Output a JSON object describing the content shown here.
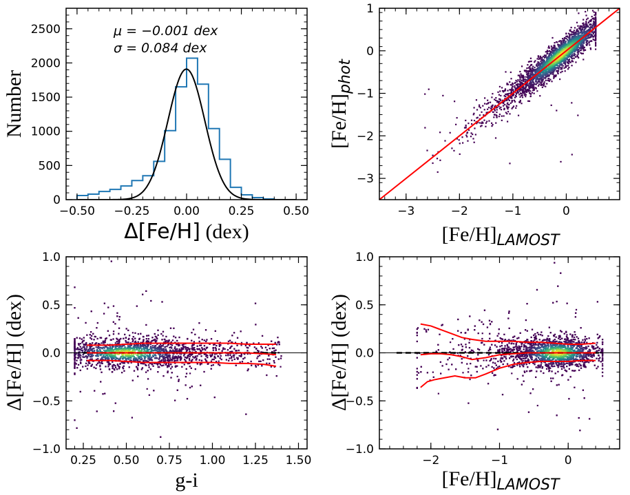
{
  "chart_data": [
    {
      "id": "histogram",
      "type": "bar",
      "xlabel_prefix": "Δ[Fe/H]",
      "xlabel_suffix": " (dex)",
      "ylabel": "Number",
      "xlim": [
        -0.55,
        0.55
      ],
      "ylim": [
        0,
        2800
      ],
      "xticks": [
        -0.5,
        -0.25,
        0.0,
        0.25,
        0.5
      ],
      "xtick_labels": [
        "−0.50",
        "−0.25",
        "0.00",
        "0.25",
        "0.50"
      ],
      "yticks": [
        0,
        500,
        1000,
        1500,
        2000,
        2500
      ],
      "ytick_labels": [
        "0",
        "500",
        "1000",
        "1500",
        "2000",
        "2500"
      ],
      "bin_edges": [
        -0.5,
        -0.45,
        -0.4,
        -0.35,
        -0.3,
        -0.25,
        -0.2,
        -0.15,
        -0.1,
        -0.05,
        0.0,
        0.05,
        0.1,
        0.15,
        0.2,
        0.25,
        0.3,
        0.35,
        0.4
      ],
      "counts": [
        60,
        80,
        120,
        150,
        200,
        280,
        350,
        560,
        1010,
        1650,
        2070,
        1690,
        1040,
        590,
        180,
        70,
        30,
        10
      ],
      "gaussian_fit": {
        "mu": -0.001,
        "sigma": 0.084,
        "amplitude": 1910
      },
      "annotations": [
        "μ = −0.001 dex",
        "σ = 0.084 dex"
      ],
      "colors": {
        "hist": "#1f77b4",
        "fit": "#000000"
      }
    },
    {
      "id": "phot-vs-lamost",
      "type": "scatter",
      "xlabel": "[Fe/H]",
      "xlabel_sub": "LAMOST",
      "ylabel": "[Fe/H]",
      "ylabel_sub": "phot",
      "xlim": [
        -3.5,
        1.0
      ],
      "ylim": [
        -3.5,
        1.0
      ],
      "xticks": [
        -3,
        -2,
        -1,
        0
      ],
      "xtick_labels": [
        "−3",
        "−2",
        "−1",
        "0"
      ],
      "yticks": [
        -3,
        -2,
        -1,
        0,
        1
      ],
      "ytick_labels": [
        "−3",
        "−2",
        "−1",
        "0",
        "1"
      ],
      "density_peak": {
        "x": -0.1,
        "y": -0.1
      },
      "one_to_one_line": {
        "slope": 1,
        "intercept": 0,
        "color": "#ff0000"
      },
      "colormap": [
        "#440154",
        "#3b528b",
        "#21918c",
        "#5ec962",
        "#fde725"
      ]
    },
    {
      "id": "residual-vs-color",
      "type": "scatter",
      "xlabel": "g-i",
      "ylabel": "Δ[Fe/H] (dex)",
      "xlim": [
        0.15,
        1.55
      ],
      "ylim": [
        -1.0,
        1.0
      ],
      "xticks": [
        0.25,
        0.5,
        0.75,
        1.0,
        1.25,
        1.5
      ],
      "xtick_labels": [
        "0.25",
        "0.50",
        "0.75",
        "1.00",
        "1.25",
        "1.50"
      ],
      "yticks": [
        -1.0,
        -0.5,
        0.0,
        0.5,
        1.0
      ],
      "ytick_labels": [
        "−1.0",
        "−0.5",
        "0.0",
        "0.5",
        "1.0"
      ],
      "zero_line": {
        "y": 0,
        "style": "dashed",
        "color": "#000000"
      },
      "trend_lines": [
        {
          "name": "upper",
          "x": [
            0.27,
            0.4,
            0.5,
            0.6,
            0.7,
            0.8,
            0.9,
            1.0,
            1.1,
            1.2,
            1.3,
            1.37
          ],
          "y": [
            0.08,
            0.08,
            0.09,
            0.1,
            0.1,
            0.1,
            0.1,
            0.1,
            0.1,
            0.09,
            0.09,
            0.09
          ]
        },
        {
          "name": "median",
          "x": [
            0.27,
            0.4,
            0.5,
            0.6,
            0.7,
            0.8,
            0.9,
            1.0,
            1.1,
            1.2,
            1.3,
            1.37
          ],
          "y": [
            0.0,
            0.0,
            0.0,
            0.0,
            0.0,
            0.0,
            0.0,
            0.0,
            0.0,
            0.0,
            -0.01,
            -0.02
          ]
        },
        {
          "name": "lower",
          "x": [
            0.27,
            0.4,
            0.5,
            0.6,
            0.7,
            0.8,
            0.9,
            1.0,
            1.1,
            1.2,
            1.3,
            1.37
          ],
          "y": [
            -0.08,
            -0.08,
            -0.09,
            -0.1,
            -0.1,
            -0.1,
            -0.1,
            -0.1,
            -0.11,
            -0.11,
            -0.12,
            -0.14
          ]
        }
      ],
      "density_peak": {
        "x": 0.5,
        "y": 0.0
      },
      "trend_color": "#ff0000"
    },
    {
      "id": "residual-vs-lamost",
      "type": "scatter",
      "xlabel": "[Fe/H]",
      "xlabel_sub": "LAMOST",
      "ylabel": "Δ[Fe/H] (dex)",
      "xlim": [
        -2.75,
        0.75
      ],
      "ylim": [
        -1.0,
        1.0
      ],
      "xticks": [
        -2,
        -1,
        0
      ],
      "xtick_labels": [
        "−2",
        "−1",
        "0"
      ],
      "yticks": [
        -1.0,
        -0.5,
        0.0,
        0.5,
        1.0
      ],
      "ytick_labels": [
        "−1.0",
        "−0.5",
        "0.0",
        "0.5",
        "1.0"
      ],
      "zero_line": {
        "y": 0,
        "style": "dashed",
        "color": "#000000"
      },
      "trend_lines": [
        {
          "name": "upper",
          "x": [
            -2.15,
            -2.0,
            -1.85,
            -1.7,
            -1.55,
            -1.4,
            -1.2,
            -1.0,
            -0.8,
            -0.6,
            -0.4,
            -0.2,
            0.0,
            0.2,
            0.4
          ],
          "y": [
            0.3,
            0.28,
            0.24,
            0.2,
            0.16,
            0.14,
            0.12,
            0.12,
            0.12,
            0.11,
            0.11,
            0.1,
            0.09,
            0.09,
            0.1
          ]
        },
        {
          "name": "median",
          "x": [
            -2.15,
            -2.0,
            -1.85,
            -1.7,
            -1.55,
            -1.4,
            -1.2,
            -1.0,
            -0.8,
            -0.6,
            -0.4,
            -0.2,
            0.0,
            0.2,
            0.4
          ],
          "y": [
            -0.02,
            -0.01,
            -0.01,
            -0.02,
            -0.04,
            -0.07,
            -0.05,
            -0.02,
            -0.01,
            0.0,
            0.0,
            0.0,
            0.0,
            0.0,
            0.0
          ]
        },
        {
          "name": "lower",
          "x": [
            -2.15,
            -2.05,
            -1.95,
            -1.8,
            -1.65,
            -1.5,
            -1.35,
            -1.2,
            -1.0,
            -0.8,
            -0.6,
            -0.4,
            -0.2,
            0.0,
            0.2,
            0.4
          ],
          "y": [
            -0.36,
            -0.3,
            -0.28,
            -0.26,
            -0.24,
            -0.26,
            -0.26,
            -0.22,
            -0.16,
            -0.12,
            -0.1,
            -0.09,
            -0.09,
            -0.09,
            -0.08,
            -0.08
          ]
        }
      ],
      "density_peak": {
        "x": -0.15,
        "y": 0.0
      },
      "trend_color": "#ff0000"
    }
  ]
}
